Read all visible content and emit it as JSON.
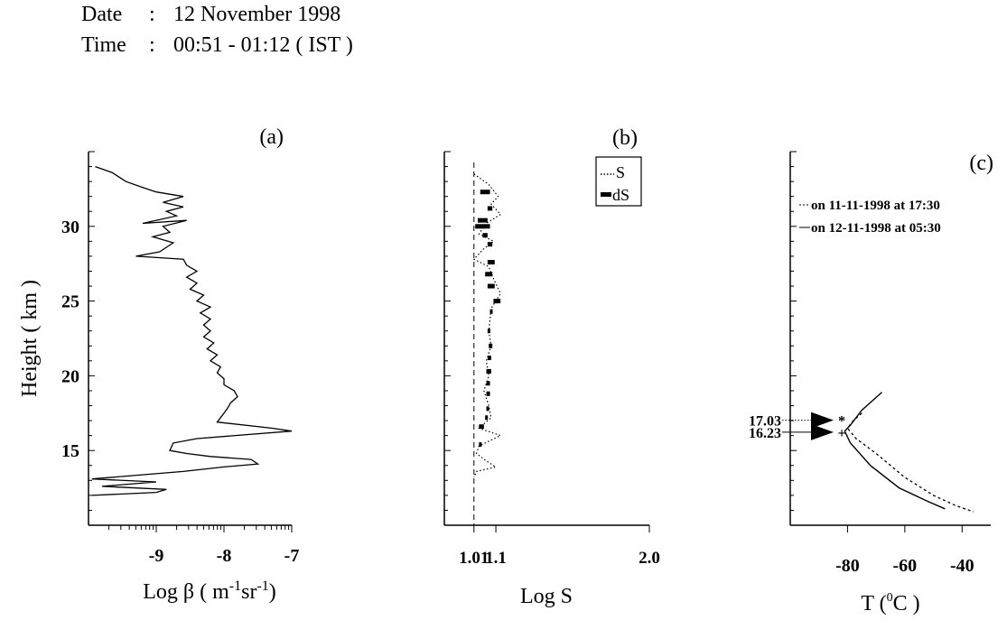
{
  "header": {
    "date_label": "Date",
    "date_value": "12 November 1998",
    "time_label": "Time",
    "time_value": "00:51 - 01:12 ( IST )",
    "separator": ":"
  },
  "chart_data": [
    {
      "id": "a",
      "type": "line",
      "panel_label": "(a)",
      "ylabel": "Height ( km )",
      "xlabel": "Log β ( m-1sr-1)",
      "xlabel_parts": [
        "Log ",
        "β",
        " ( m",
        "-1",
        "sr",
        "-1",
        ")"
      ],
      "xlim": [
        -10,
        -7
      ],
      "ylim": [
        10,
        35
      ],
      "xticks": [
        -9,
        -8,
        -7
      ],
      "xtick_labels": [
        "-9",
        "-8",
        "-7"
      ],
      "yticks": [
        15,
        20,
        25,
        30
      ],
      "ytick_labels": [
        "15",
        "20",
        "25",
        "30"
      ],
      "series": [
        {
          "style": "solid",
          "points": [
            [
              -9.9,
              34
            ],
            [
              -9.65,
              33.6
            ],
            [
              -9.45,
              33
            ],
            [
              -9.2,
              32.6
            ],
            [
              -9.0,
              32.3
            ],
            [
              -8.6,
              32.0
            ],
            [
              -8.9,
              31.6
            ],
            [
              -8.6,
              31.3
            ],
            [
              -8.85,
              31.0
            ],
            [
              -8.7,
              30.7
            ],
            [
              -9.2,
              30.2
            ],
            [
              -8.55,
              30.4
            ],
            [
              -8.9,
              30.0
            ],
            [
              -8.8,
              29.6
            ],
            [
              -9.05,
              29.3
            ],
            [
              -8.75,
              28.9
            ],
            [
              -8.85,
              28.6
            ],
            [
              -8.95,
              28.3
            ],
            [
              -9.3,
              28.0
            ],
            [
              -8.6,
              27.8
            ],
            [
              -8.55,
              27.4
            ],
            [
              -8.4,
              27.0
            ],
            [
              -8.55,
              26.6
            ],
            [
              -8.4,
              26.2
            ],
            [
              -8.5,
              25.8
            ],
            [
              -8.3,
              25.4
            ],
            [
              -8.4,
              25.0
            ],
            [
              -8.2,
              24.6
            ],
            [
              -8.35,
              24.2
            ],
            [
              -8.2,
              23.8
            ],
            [
              -8.3,
              23.4
            ],
            [
              -8.2,
              23.0
            ],
            [
              -8.3,
              22.6
            ],
            [
              -8.15,
              22.2
            ],
            [
              -8.25,
              21.8
            ],
            [
              -8.1,
              21.4
            ],
            [
              -8.2,
              21.0
            ],
            [
              -8.05,
              20.6
            ],
            [
              -8.1,
              20.2
            ],
            [
              -8.0,
              19.8
            ],
            [
              -8.0,
              19.4
            ],
            [
              -7.85,
              19.0
            ],
            [
              -7.8,
              18.6
            ],
            [
              -7.9,
              18.2
            ],
            [
              -7.95,
              17.8
            ],
            [
              -8.0,
              17.5
            ],
            [
              -8.05,
              17.2
            ],
            [
              -8.1,
              16.9
            ],
            [
              -7.3,
              16.5
            ],
            [
              -7.0,
              16.3
            ],
            [
              -8.4,
              15.8
            ],
            [
              -8.75,
              15.5
            ],
            [
              -8.8,
              15.0
            ],
            [
              -8.55,
              14.8
            ],
            [
              -8.2,
              14.6
            ],
            [
              -7.6,
              14.4
            ],
            [
              -7.5,
              14.1
            ],
            [
              -8.0,
              13.9
            ],
            [
              -8.6,
              13.6
            ],
            [
              -9.95,
              13.1
            ],
            [
              -9.0,
              12.9
            ],
            [
              -9.8,
              12.6
            ],
            [
              -8.85,
              12.4
            ],
            [
              -9.0,
              12.2
            ],
            [
              -9.95,
              12.0
            ]
          ]
        }
      ]
    },
    {
      "id": "b",
      "type": "line",
      "panel_label": "(b)",
      "xlabel": "Log S",
      "xscale": "log",
      "xlim": [
        0.9,
        2.0
      ],
      "ylim": [
        10,
        35
      ],
      "xticks": [
        1.01,
        1.1,
        2.0
      ],
      "xtick_labels": [
        "1.01",
        "1.1",
        "2.0"
      ],
      "reference_line_x": 1.01,
      "legend": {
        "position": "top-right",
        "entries": [
          "S",
          "dS"
        ]
      },
      "series": [
        {
          "name": "S",
          "style": "dotted",
          "points": [
            [
              1.01,
              33.5
            ],
            [
              1.07,
              32.8
            ],
            [
              1.11,
              32.0
            ],
            [
              1.08,
              31.5
            ],
            [
              1.12,
              30.8
            ],
            [
              1.06,
              30.2
            ],
            [
              1.03,
              29.5
            ],
            [
              1.09,
              29.0
            ],
            [
              1.05,
              28.5
            ],
            [
              1.01,
              27.8
            ],
            [
              1.07,
              27.3
            ],
            [
              1.09,
              26.5
            ],
            [
              1.12,
              25.5
            ],
            [
              1.08,
              24.5
            ],
            [
              1.07,
              23.0
            ],
            [
              1.08,
              22.0
            ],
            [
              1.06,
              21.0
            ],
            [
              1.07,
              20.0
            ],
            [
              1.05,
              19.0
            ],
            [
              1.07,
              18.0
            ],
            [
              1.08,
              17.2
            ],
            [
              1.03,
              16.5
            ],
            [
              1.12,
              16.0
            ],
            [
              1.03,
              15.3
            ],
            [
              1.02,
              14.8
            ],
            [
              1.06,
              14.3
            ],
            [
              1.1,
              13.9
            ],
            [
              1.02,
              13.6
            ],
            [
              1.01,
              13.2
            ]
          ]
        },
        {
          "name": "dS",
          "style": "error-bar",
          "points": [
            [
              1.035,
              1.075,
              32.3
            ],
            [
              1.065,
              1.085,
              31.2
            ],
            [
              1.025,
              1.065,
              30.4
            ],
            [
              1.015,
              1.075,
              30.0
            ],
            [
              1.045,
              1.065,
              29.4
            ],
            [
              1.065,
              1.085,
              28.8
            ],
            [
              1.065,
              1.095,
              27.6
            ],
            [
              1.055,
              1.085,
              26.8
            ],
            [
              1.065,
              1.095,
              26.0
            ],
            [
              1.09,
              1.12,
              25.0
            ],
            [
              1.075,
              1.085,
              24.3
            ],
            [
              1.065,
              1.075,
              23.0
            ],
            [
              1.07,
              1.085,
              22.0
            ],
            [
              1.065,
              1.08,
              21.2
            ],
            [
              1.06,
              1.08,
              20.3
            ],
            [
              1.06,
              1.075,
              19.5
            ],
            [
              1.06,
              1.075,
              18.8
            ],
            [
              1.06,
              1.07,
              17.8
            ],
            [
              1.055,
              1.065,
              17.2
            ],
            [
              1.03,
              1.05,
              16.6
            ],
            [
              1.03,
              1.035,
              15.4
            ]
          ]
        }
      ]
    },
    {
      "id": "c",
      "type": "line",
      "panel_label": "(c)",
      "xlabel": "T ( 0C )",
      "xlabel_parts": [
        "T  (",
        "0",
        "C )"
      ],
      "xlim": [
        -100,
        -30
      ],
      "ylim": [
        10,
        35
      ],
      "xticks": [
        -80,
        -60,
        -40
      ],
      "xtick_labels": [
        "-80",
        "-60",
        "-40"
      ],
      "legend": {
        "position": "top",
        "entries": [
          "on 11-11-1998 at 17:30",
          "on 12-11-1998 at 05:30"
        ]
      },
      "series": [
        {
          "name": "on 11-11-1998 at 17:30",
          "style": "dashed",
          "points": [
            [
              -75,
              17.5
            ],
            [
              -78,
              17.0
            ],
            [
              -80,
              16.5
            ],
            [
              -77,
              15.8
            ],
            [
              -70,
              14.8
            ],
            [
              -60,
              13.2
            ],
            [
              -50,
              12.0
            ],
            [
              -42,
              11.3
            ],
            [
              -36,
              10.9
            ]
          ]
        },
        {
          "name": "on 12-11-1998 at 05:30",
          "style": "solid",
          "points": [
            [
              -68,
              18.9
            ],
            [
              -75,
              17.7
            ],
            [
              -79,
              16.7
            ],
            [
              -81,
              16.3
            ],
            [
              -79,
              15.5
            ],
            [
              -72,
              14.0
            ],
            [
              -62,
              12.5
            ],
            [
              -52,
              11.6
            ],
            [
              -46,
              11.1
            ]
          ]
        }
      ],
      "annotations": [
        {
          "label": "17.03",
          "y": 17.03,
          "marker": "*"
        },
        {
          "label": "16.23",
          "y": 16.23,
          "marker": "+"
        }
      ]
    }
  ]
}
